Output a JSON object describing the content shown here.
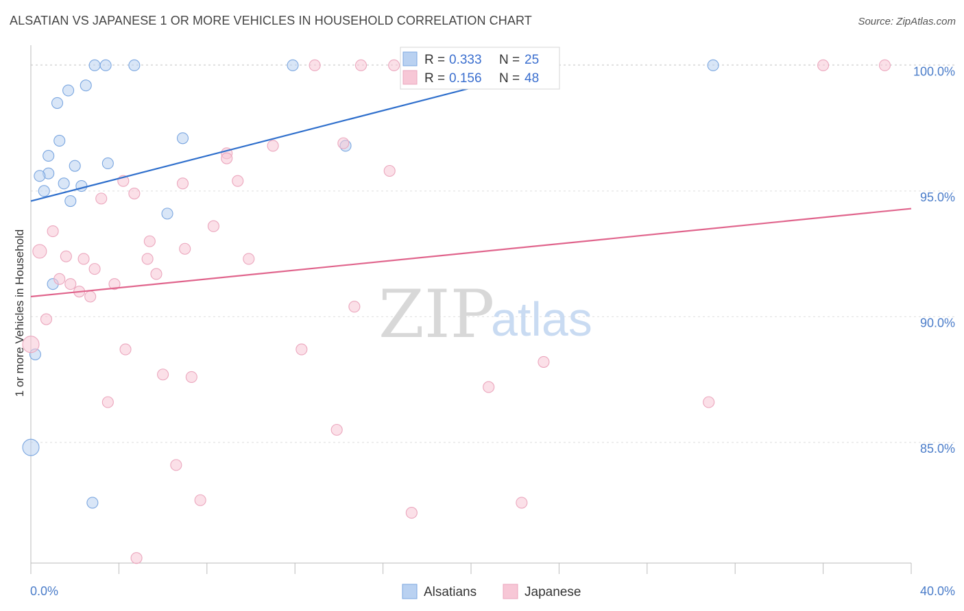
{
  "title": "ALSATIAN VS JAPANESE 1 OR MORE VEHICLES IN HOUSEHOLD CORRELATION CHART",
  "source": "Source: ZipAtlas.com",
  "watermark": {
    "zip": "ZIP",
    "atlas": "atlas"
  },
  "chart_data": {
    "type": "scatter",
    "title": "ALSATIAN VS JAPANESE 1 OR MORE VEHICLES IN HOUSEHOLD CORRELATION CHART",
    "xlabel": "",
    "ylabel": "1 or more Vehicles in Household",
    "xlim": [
      0,
      40
    ],
    "ylim": [
      80.2,
      100.8
    ],
    "x_tick_labels": {
      "left": "0.0%",
      "right": "40.0%"
    },
    "y_ticks": [
      {
        "value": 100,
        "label": "100.0%"
      },
      {
        "value": 95,
        "label": "95.0%"
      },
      {
        "value": 90,
        "label": "90.0%"
      },
      {
        "value": 85,
        "label": "85.0%"
      }
    ],
    "grid": true,
    "legend": {
      "placement": "top-center",
      "entries": [
        {
          "series": "Alsatians",
          "r_label": "R =",
          "r_value": "0.333",
          "n_label": "N =",
          "n_value": "25"
        },
        {
          "series": "Japanese",
          "r_label": "R =",
          "r_value": "0.156",
          "n_label": "N =",
          "n_value": "48"
        }
      ]
    },
    "series": [
      {
        "name": "Alsatians",
        "color": "#7aa6e0",
        "fill": "#b9d1f1",
        "line_color": "#2f6fcc",
        "trend": {
          "x": [
            0,
            24
          ],
          "y": [
            94.6,
            100.0
          ]
        },
        "points": [
          {
            "x": 2.9,
            "y": 100.0
          },
          {
            "x": 3.4,
            "y": 100.0
          },
          {
            "x": 4.7,
            "y": 100.0
          },
          {
            "x": 11.9,
            "y": 100.0
          },
          {
            "x": 31.0,
            "y": 100.0
          },
          {
            "x": 2.5,
            "y": 99.2
          },
          {
            "x": 1.7,
            "y": 99.0
          },
          {
            "x": 1.2,
            "y": 98.5
          },
          {
            "x": 6.9,
            "y": 97.1
          },
          {
            "x": 1.3,
            "y": 97.0
          },
          {
            "x": 14.3,
            "y": 96.8
          },
          {
            "x": 0.8,
            "y": 96.4
          },
          {
            "x": 3.5,
            "y": 96.1
          },
          {
            "x": 2.0,
            "y": 96.0
          },
          {
            "x": 0.8,
            "y": 95.7
          },
          {
            "x": 0.4,
            "y": 95.6
          },
          {
            "x": 1.5,
            "y": 95.3
          },
          {
            "x": 2.3,
            "y": 95.2
          },
          {
            "x": 0.6,
            "y": 95.0
          },
          {
            "x": 1.8,
            "y": 94.6
          },
          {
            "x": 6.2,
            "y": 94.1
          },
          {
            "x": 1.0,
            "y": 91.3
          },
          {
            "x": 0.2,
            "y": 88.5
          },
          {
            "x": 0.0,
            "y": 84.8,
            "size": "large"
          },
          {
            "x": 2.8,
            "y": 82.6
          }
        ]
      },
      {
        "name": "Japanese",
        "color": "#eba6bd",
        "fill": "#f7c7d6",
        "line_color": "#e0648c",
        "trend": {
          "x": [
            0,
            40
          ],
          "y": [
            90.8,
            94.3
          ]
        },
        "points": [
          {
            "x": 12.9,
            "y": 100.0
          },
          {
            "x": 15.0,
            "y": 100.0
          },
          {
            "x": 16.5,
            "y": 100.0
          },
          {
            "x": 36.0,
            "y": 100.0
          },
          {
            "x": 38.8,
            "y": 100.0
          },
          {
            "x": 14.2,
            "y": 96.9
          },
          {
            "x": 11.0,
            "y": 96.8
          },
          {
            "x": 8.9,
            "y": 96.5
          },
          {
            "x": 8.9,
            "y": 96.3
          },
          {
            "x": 16.3,
            "y": 95.8
          },
          {
            "x": 4.2,
            "y": 95.4
          },
          {
            "x": 9.4,
            "y": 95.4
          },
          {
            "x": 6.9,
            "y": 95.3
          },
          {
            "x": 4.7,
            "y": 94.9
          },
          {
            "x": 3.2,
            "y": 94.7
          },
          {
            "x": 8.3,
            "y": 93.6
          },
          {
            "x": 1.0,
            "y": 93.4
          },
          {
            "x": 5.4,
            "y": 93.0
          },
          {
            "x": 7.0,
            "y": 92.7
          },
          {
            "x": 0.4,
            "y": 92.6,
            "size": "medium"
          },
          {
            "x": 1.6,
            "y": 92.4
          },
          {
            "x": 2.4,
            "y": 92.3
          },
          {
            "x": 5.3,
            "y": 92.3
          },
          {
            "x": 9.9,
            "y": 92.3
          },
          {
            "x": 2.9,
            "y": 91.9
          },
          {
            "x": 5.7,
            "y": 91.7
          },
          {
            "x": 1.3,
            "y": 91.5
          },
          {
            "x": 1.8,
            "y": 91.3
          },
          {
            "x": 3.8,
            "y": 91.3
          },
          {
            "x": 2.2,
            "y": 91.0
          },
          {
            "x": 2.7,
            "y": 90.8
          },
          {
            "x": 14.7,
            "y": 90.4
          },
          {
            "x": 0.7,
            "y": 89.9
          },
          {
            "x": 0.0,
            "y": 88.9,
            "size": "large"
          },
          {
            "x": 4.3,
            "y": 88.7
          },
          {
            "x": 12.3,
            "y": 88.7
          },
          {
            "x": 23.3,
            "y": 88.2
          },
          {
            "x": 6.0,
            "y": 87.7
          },
          {
            "x": 7.3,
            "y": 87.6
          },
          {
            "x": 20.8,
            "y": 87.2
          },
          {
            "x": 3.5,
            "y": 86.6
          },
          {
            "x": 30.8,
            "y": 86.6
          },
          {
            "x": 13.9,
            "y": 85.5
          },
          {
            "x": 6.6,
            "y": 84.1
          },
          {
            "x": 7.7,
            "y": 82.7
          },
          {
            "x": 22.3,
            "y": 82.6
          },
          {
            "x": 17.3,
            "y": 82.2
          },
          {
            "x": 4.8,
            "y": 80.4
          }
        ]
      }
    ]
  }
}
